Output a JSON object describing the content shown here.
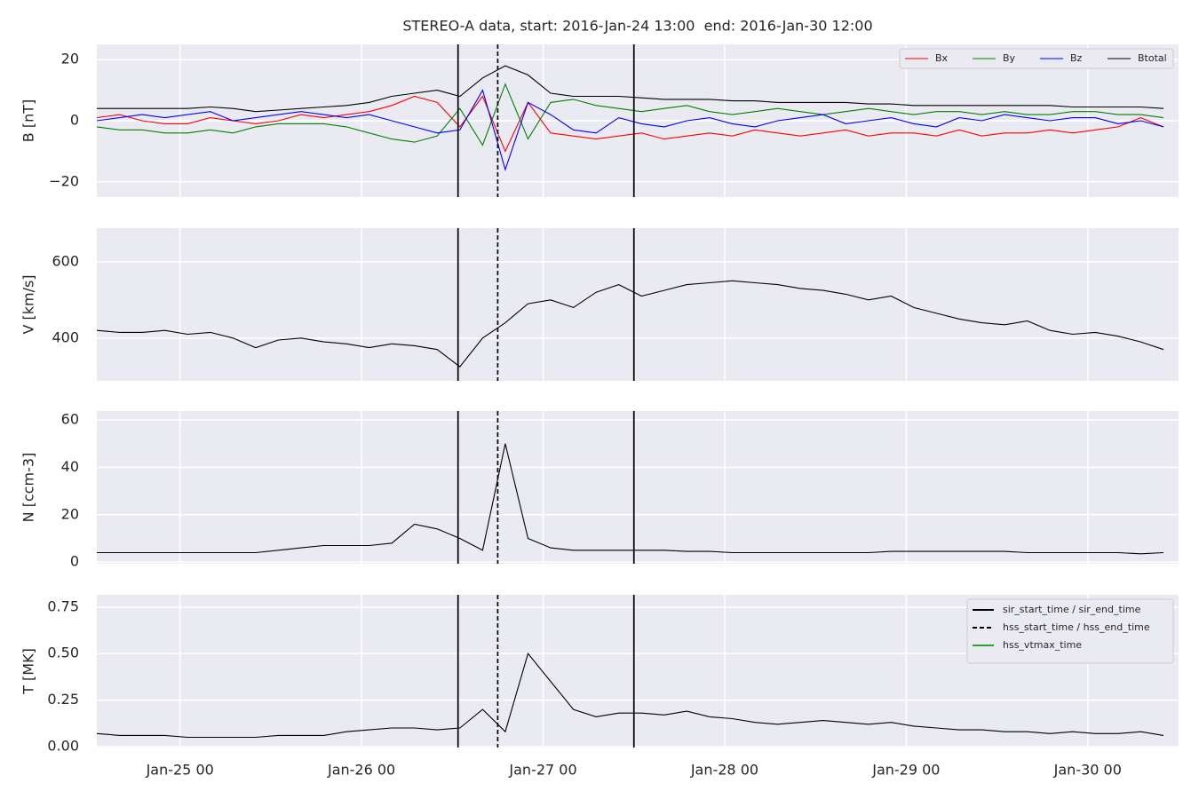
{
  "chart_data": [
    {
      "type": "line",
      "title": "STEREO-A data, start: 2016-Jan-24 13:00  end: 2016-Jan-30 12:00",
      "ylabel": "B [nT]",
      "x": [
        "2016-01-24 13:00",
        "2016-01-24 16:00",
        "2016-01-24 19:00",
        "2016-01-24 22:00",
        "2016-01-25 01:00",
        "2016-01-25 04:00",
        "2016-01-25 07:00",
        "2016-01-25 10:00",
        "2016-01-25 13:00",
        "2016-01-25 16:00",
        "2016-01-25 19:00",
        "2016-01-25 22:00",
        "2016-01-26 01:00",
        "2016-01-26 04:00",
        "2016-01-26 07:00",
        "2016-01-26 10:00",
        "2016-01-26 13:00",
        "2016-01-26 16:00",
        "2016-01-26 19:00",
        "2016-01-26 22:00",
        "2016-01-27 01:00",
        "2016-01-27 04:00",
        "2016-01-27 07:00",
        "2016-01-27 10:00",
        "2016-01-27 13:00",
        "2016-01-27 16:00",
        "2016-01-27 19:00",
        "2016-01-27 22:00",
        "2016-01-28 01:00",
        "2016-01-28 04:00",
        "2016-01-28 07:00",
        "2016-01-28 10:00",
        "2016-01-28 13:00",
        "2016-01-28 16:00",
        "2016-01-28 19:00",
        "2016-01-28 22:00",
        "2016-01-29 01:00",
        "2016-01-29 04:00",
        "2016-01-29 07:00",
        "2016-01-29 10:00",
        "2016-01-29 13:00",
        "2016-01-29 16:00",
        "2016-01-29 19:00",
        "2016-01-29 22:00",
        "2016-01-30 01:00",
        "2016-01-30 04:00",
        "2016-01-30 07:00",
        "2016-01-30 10:00"
      ],
      "xlim": [
        "2016-01-24 13:00",
        "2016-01-30 12:00"
      ],
      "xticks": [
        {
          "value": "2016-01-25 00:00",
          "label": "Jan-25 00"
        },
        {
          "value": "2016-01-26 00:00",
          "label": "Jan-26 00"
        },
        {
          "value": "2016-01-27 00:00",
          "label": "Jan-27 00"
        },
        {
          "value": "2016-01-28 00:00",
          "label": "Jan-28 00"
        },
        {
          "value": "2016-01-29 00:00",
          "label": "Jan-29 00"
        },
        {
          "value": "2016-01-30 00:00",
          "label": "Jan-30 00"
        }
      ],
      "show_xticklabels": false,
      "ylim": [
        -25,
        25
      ],
      "yticks": [
        {
          "value": -20,
          "label": "−20"
        },
        0,
        20
      ],
      "grid": true,
      "legend": "upper right",
      "series": [
        {
          "name": "Bx",
          "color": "#ff0000",
          "values": [
            1,
            2,
            0,
            -1,
            -1,
            1,
            0,
            -1,
            0,
            2,
            1,
            2,
            3,
            5,
            8,
            6,
            -2,
            8,
            -10,
            6,
            -4,
            -5,
            -6,
            -5,
            -4,
            -6,
            -5,
            -4,
            -5,
            -3,
            -4,
            -5,
            -4,
            -3,
            -5,
            -4,
            -4,
            -5,
            -3,
            -5,
            -4,
            -4,
            -3,
            -4,
            -3,
            -2,
            1,
            -2
          ]
        },
        {
          "name": "By",
          "color": "#008000",
          "values": [
            -2,
            -3,
            -3,
            -4,
            -4,
            -3,
            -4,
            -2,
            -1,
            -1,
            -1,
            -2,
            -4,
            -6,
            -7,
            -5,
            4,
            -8,
            12,
            -6,
            6,
            7,
            5,
            4,
            3,
            4,
            5,
            3,
            2,
            3,
            4,
            3,
            2,
            3,
            4,
            3,
            2,
            3,
            3,
            2,
            3,
            2,
            2,
            3,
            3,
            2,
            2,
            1
          ]
        },
        {
          "name": "Bz",
          "color": "#0000ff",
          "values": [
            0,
            1,
            2,
            1,
            2,
            3,
            0,
            1,
            2,
            3,
            2,
            1,
            2,
            0,
            -2,
            -4,
            -3,
            10,
            -16,
            6,
            2,
            -3,
            -4,
            1,
            -1,
            -2,
            0,
            1,
            -1,
            -2,
            0,
            1,
            2,
            -1,
            0,
            1,
            -1,
            -2,
            1,
            0,
            2,
            1,
            0,
            1,
            1,
            -1,
            0,
            -2
          ]
        },
        {
          "name": "Btotal",
          "color": "#000000",
          "values": [
            4,
            4,
            4,
            4,
            4,
            4.5,
            4,
            3,
            3.5,
            4,
            4.5,
            5,
            6,
            8,
            9,
            10,
            8,
            14,
            18,
            15,
            9,
            8,
            8,
            8,
            7.5,
            7,
            7,
            7,
            6.5,
            6.5,
            6,
            6,
            6,
            6,
            5.5,
            5.5,
            5,
            5,
            5,
            5,
            5,
            5,
            5,
            4.5,
            4.5,
            4.5,
            4.5,
            4
          ]
        }
      ],
      "vlines": [
        {
          "x": "2016-01-26 12:45",
          "style": "solid"
        },
        {
          "x": "2016-01-26 18:00",
          "style": "dashed"
        },
        {
          "x": "2016-01-27 12:00",
          "style": "solid"
        }
      ]
    },
    {
      "type": "line",
      "ylabel": "V [km/s]",
      "x": [
        "2016-01-24 13:00",
        "2016-01-24 16:00",
        "2016-01-24 19:00",
        "2016-01-24 22:00",
        "2016-01-25 01:00",
        "2016-01-25 04:00",
        "2016-01-25 07:00",
        "2016-01-25 10:00",
        "2016-01-25 13:00",
        "2016-01-25 16:00",
        "2016-01-25 19:00",
        "2016-01-25 22:00",
        "2016-01-26 01:00",
        "2016-01-26 04:00",
        "2016-01-26 07:00",
        "2016-01-26 10:00",
        "2016-01-26 13:00",
        "2016-01-26 16:00",
        "2016-01-26 19:00",
        "2016-01-26 22:00",
        "2016-01-27 01:00",
        "2016-01-27 04:00",
        "2016-01-27 07:00",
        "2016-01-27 10:00",
        "2016-01-27 13:00",
        "2016-01-27 16:00",
        "2016-01-27 19:00",
        "2016-01-27 22:00",
        "2016-01-28 01:00",
        "2016-01-28 04:00",
        "2016-01-28 07:00",
        "2016-01-28 10:00",
        "2016-01-28 13:00",
        "2016-01-28 16:00",
        "2016-01-28 19:00",
        "2016-01-28 22:00",
        "2016-01-29 01:00",
        "2016-01-29 04:00",
        "2016-01-29 07:00",
        "2016-01-29 10:00",
        "2016-01-29 13:00",
        "2016-01-29 16:00",
        "2016-01-29 19:00",
        "2016-01-29 22:00",
        "2016-01-30 01:00",
        "2016-01-30 04:00",
        "2016-01-30 07:00",
        "2016-01-30 10:00"
      ],
      "xlim": [
        "2016-01-24 13:00",
        "2016-01-30 12:00"
      ],
      "xticks": [
        {
          "value": "2016-01-25 00:00",
          "label": "Jan-25 00"
        },
        {
          "value": "2016-01-26 00:00",
          "label": "Jan-26 00"
        },
        {
          "value": "2016-01-27 00:00",
          "label": "Jan-27 00"
        },
        {
          "value": "2016-01-28 00:00",
          "label": "Jan-28 00"
        },
        {
          "value": "2016-01-29 00:00",
          "label": "Jan-29 00"
        },
        {
          "value": "2016-01-30 00:00",
          "label": "Jan-30 00"
        }
      ],
      "show_xticklabels": false,
      "ylim": [
        288,
        688
      ],
      "yticks": [
        400,
        600
      ],
      "grid": true,
      "series": [
        {
          "color": "#000000",
          "values": [
            420,
            415,
            415,
            420,
            410,
            415,
            400,
            375,
            395,
            400,
            390,
            385,
            375,
            385,
            380,
            370,
            325,
            400,
            440,
            490,
            500,
            480,
            520,
            540,
            510,
            525,
            540,
            545,
            550,
            545,
            540,
            530,
            525,
            515,
            500,
            510,
            480,
            465,
            450,
            440,
            435,
            445,
            420,
            410,
            415,
            405,
            390,
            370
          ]
        }
      ],
      "vlines": [
        {
          "x": "2016-01-26 12:45",
          "style": "solid"
        },
        {
          "x": "2016-01-26 18:00",
          "style": "dashed"
        },
        {
          "x": "2016-01-27 12:00",
          "style": "solid"
        }
      ]
    },
    {
      "type": "line",
      "ylabel": "N [ccm-3]",
      "x": [
        "2016-01-24 13:00",
        "2016-01-24 16:00",
        "2016-01-24 19:00",
        "2016-01-24 22:00",
        "2016-01-25 01:00",
        "2016-01-25 04:00",
        "2016-01-25 07:00",
        "2016-01-25 10:00",
        "2016-01-25 13:00",
        "2016-01-25 16:00",
        "2016-01-25 19:00",
        "2016-01-25 22:00",
        "2016-01-26 01:00",
        "2016-01-26 04:00",
        "2016-01-26 07:00",
        "2016-01-26 10:00",
        "2016-01-26 13:00",
        "2016-01-26 16:00",
        "2016-01-26 19:00",
        "2016-01-26 22:00",
        "2016-01-27 01:00",
        "2016-01-27 04:00",
        "2016-01-27 07:00",
        "2016-01-27 10:00",
        "2016-01-27 13:00",
        "2016-01-27 16:00",
        "2016-01-27 19:00",
        "2016-01-27 22:00",
        "2016-01-28 01:00",
        "2016-01-28 04:00",
        "2016-01-28 07:00",
        "2016-01-28 10:00",
        "2016-01-28 13:00",
        "2016-01-28 16:00",
        "2016-01-28 19:00",
        "2016-01-28 22:00",
        "2016-01-29 01:00",
        "2016-01-29 04:00",
        "2016-01-29 07:00",
        "2016-01-29 10:00",
        "2016-01-29 13:00",
        "2016-01-29 16:00",
        "2016-01-29 19:00",
        "2016-01-29 22:00",
        "2016-01-30 01:00",
        "2016-01-30 04:00",
        "2016-01-30 07:00",
        "2016-01-30 10:00"
      ],
      "xlim": [
        "2016-01-24 13:00",
        "2016-01-30 12:00"
      ],
      "xticks": [
        {
          "value": "2016-01-25 00:00",
          "label": "Jan-25 00"
        },
        {
          "value": "2016-01-26 00:00",
          "label": "Jan-26 00"
        },
        {
          "value": "2016-01-27 00:00",
          "label": "Jan-27 00"
        },
        {
          "value": "2016-01-28 00:00",
          "label": "Jan-28 00"
        },
        {
          "value": "2016-01-29 00:00",
          "label": "Jan-29 00"
        },
        {
          "value": "2016-01-30 00:00",
          "label": "Jan-30 00"
        }
      ],
      "show_xticklabels": false,
      "ylim": [
        -0.7,
        63.8
      ],
      "yticks": [
        0,
        20,
        40,
        60
      ],
      "grid": true,
      "series": [
        {
          "color": "#000000",
          "values": [
            4,
            4,
            4,
            4,
            4,
            4,
            4,
            4,
            5,
            6,
            7,
            7,
            7,
            8,
            16,
            14,
            10,
            5,
            50,
            10,
            6,
            5,
            5,
            5,
            5,
            5,
            4.5,
            4.5,
            4,
            4,
            4,
            4,
            4,
            4,
            4,
            4.5,
            4.5,
            4.5,
            4.5,
            4.5,
            4.5,
            4,
            4,
            4,
            4,
            4,
            3.5,
            4
          ]
        }
      ],
      "vlines": [
        {
          "x": "2016-01-26 12:45",
          "style": "solid"
        },
        {
          "x": "2016-01-26 18:00",
          "style": "dashed"
        },
        {
          "x": "2016-01-27 12:00",
          "style": "solid"
        }
      ]
    },
    {
      "type": "line",
      "ylabel": "T [MK]",
      "x": [
        "2016-01-24 13:00",
        "2016-01-24 16:00",
        "2016-01-24 19:00",
        "2016-01-24 22:00",
        "2016-01-25 01:00",
        "2016-01-25 04:00",
        "2016-01-25 07:00",
        "2016-01-25 10:00",
        "2016-01-25 13:00",
        "2016-01-25 16:00",
        "2016-01-25 19:00",
        "2016-01-25 22:00",
        "2016-01-26 01:00",
        "2016-01-26 04:00",
        "2016-01-26 07:00",
        "2016-01-26 10:00",
        "2016-01-26 13:00",
        "2016-01-26 16:00",
        "2016-01-26 19:00",
        "2016-01-26 22:00",
        "2016-01-27 01:00",
        "2016-01-27 04:00",
        "2016-01-27 07:00",
        "2016-01-27 10:00",
        "2016-01-27 13:00",
        "2016-01-27 16:00",
        "2016-01-27 19:00",
        "2016-01-27 22:00",
        "2016-01-28 01:00",
        "2016-01-28 04:00",
        "2016-01-28 07:00",
        "2016-01-28 10:00",
        "2016-01-28 13:00",
        "2016-01-28 16:00",
        "2016-01-28 19:00",
        "2016-01-28 22:00",
        "2016-01-29 01:00",
        "2016-01-29 04:00",
        "2016-01-29 07:00",
        "2016-01-29 10:00",
        "2016-01-29 13:00",
        "2016-01-29 16:00",
        "2016-01-29 19:00",
        "2016-01-29 22:00",
        "2016-01-30 01:00",
        "2016-01-30 04:00",
        "2016-01-30 07:00",
        "2016-01-30 10:00"
      ],
      "xlim": [
        "2016-01-24 13:00",
        "2016-01-30 12:00"
      ],
      "xticks": [
        {
          "value": "2016-01-25 00:00",
          "label": "Jan-25 00"
        },
        {
          "value": "2016-01-26 00:00",
          "label": "Jan-26 00"
        },
        {
          "value": "2016-01-27 00:00",
          "label": "Jan-27 00"
        },
        {
          "value": "2016-01-28 00:00",
          "label": "Jan-28 00"
        },
        {
          "value": "2016-01-29 00:00",
          "label": "Jan-29 00"
        },
        {
          "value": "2016-01-30 00:00",
          "label": "Jan-30 00"
        }
      ],
      "show_xticklabels": true,
      "ylim": [
        -0.005,
        0.816
      ],
      "yticks": [
        {
          "value": 0,
          "label": "0.00"
        },
        {
          "value": 0.25,
          "label": "0.25"
        },
        {
          "value": 0.5,
          "label": "0.50"
        },
        {
          "value": 0.75,
          "label": "0.75"
        }
      ],
      "grid": true,
      "series": [
        {
          "color": "#000000",
          "values": [
            0.07,
            0.06,
            0.06,
            0.06,
            0.05,
            0.05,
            0.05,
            0.05,
            0.06,
            0.06,
            0.06,
            0.08,
            0.09,
            0.1,
            0.1,
            0.09,
            0.1,
            0.2,
            0.08,
            0.5,
            0.35,
            0.2,
            0.16,
            0.18,
            0.18,
            0.17,
            0.19,
            0.16,
            0.15,
            0.13,
            0.12,
            0.13,
            0.14,
            0.13,
            0.12,
            0.13,
            0.11,
            0.1,
            0.09,
            0.09,
            0.08,
            0.08,
            0.07,
            0.08,
            0.07,
            0.07,
            0.08,
            0.06
          ]
        }
      ],
      "vlines": [
        {
          "x": "2016-01-26 12:45",
          "style": "solid"
        },
        {
          "x": "2016-01-26 18:00",
          "style": "dashed"
        },
        {
          "x": "2016-01-27 12:00",
          "style": "solid"
        }
      ],
      "vline_legend": "upper right",
      "vline_legend_entries": [
        {
          "label": "sir_start_time / sir_end_time",
          "style": "solid",
          "color": "#000000"
        },
        {
          "label": "hss_start_time / hss_end_time",
          "style": "dashed",
          "color": "#000000"
        },
        {
          "label": "hss_vtmax_time",
          "style": "solid",
          "color": "#2ca02c"
        }
      ]
    }
  ]
}
